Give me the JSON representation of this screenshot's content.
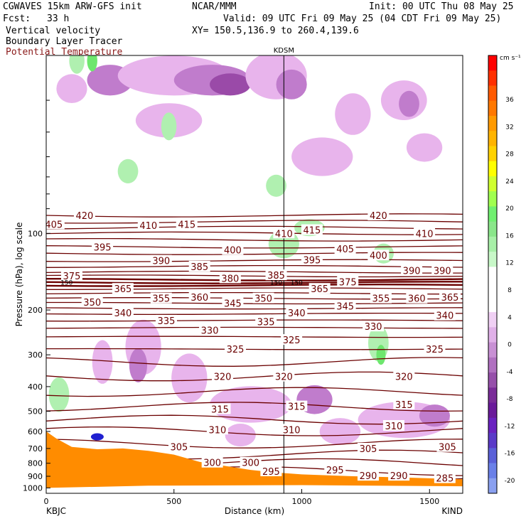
{
  "header": {
    "model": "CGWAVES 15km ARW-GFS init",
    "org": "NCAR/MMM",
    "init": "Init: 00 UTC Thu 08 May 25",
    "fcst_label": "Fcst:",
    "fcst_value": "33 h",
    "valid": "Valid: 09 UTC Fri 09 May 25 (04 CDT Fri 09 May 25)",
    "field1": "Vertical velocity",
    "field2": "Boundary Layer Tracer",
    "field3": "Potential Temperature",
    "xy": "XY= 150.5,136.9 to 260.4,139.6"
  },
  "colors": {
    "theta": "#6b0000",
    "terrain": "#ff8c00",
    "up_light": "#b0f0b0",
    "up_mid": "#6ee66e",
    "down_light": "#e8b4ec",
    "down_mid": "#c07ccc",
    "down_strong": "#9a4aa8"
  },
  "chart_data": {
    "type": "contour",
    "xlabel": "Distance (km)",
    "ylabel": "Pressure (hPa), log scale",
    "x_ticks": [
      "0",
      "500",
      "1000",
      "1500"
    ],
    "y_ticks": [
      "100",
      "200",
      "300",
      "400",
      "500",
      "600",
      "700",
      "800",
      "900",
      "1000"
    ],
    "xlim": [
      0,
      1630
    ],
    "ylim": [
      1050,
      20
    ],
    "station_left": "KBJC",
    "station_right": "KIND",
    "station_mid": "KDSM",
    "station_mid_km": 930,
    "colorbar_unit": "cm s⁻¹",
    "colorbar_labels": [
      "36",
      "32",
      "28",
      "24",
      "20",
      "16",
      "12",
      "8",
      "4",
      "0",
      "-4",
      "-8",
      "-12",
      "-16",
      "-20"
    ],
    "colorbar_colors": [
      "#ff0000",
      "#ff3000",
      "#ff5a00",
      "#ff7800",
      "#ff9a00",
      "#ffb400",
      "#ffd200",
      "#ffff00",
      "#d0ff30",
      "#a0ff50",
      "#70f070",
      "#8ae68a",
      "#a8f0a8",
      "#c8f8c8",
      "#ffffff",
      "#ffffff",
      "#ffffff",
      "#f0d0f4",
      "#e0b0e8",
      "#c890d4",
      "#b070c0",
      "#9650aa",
      "#7a2c98",
      "#6a1a9a",
      "#6a22c0",
      "#5a3ac8",
      "#5a60d8",
      "#6a80e8",
      "#8aa0f0"
    ],
    "theta_labels": [
      {
        "v": "420",
        "x": 150,
        "p": 85
      },
      {
        "v": "420",
        "x": 1300,
        "p": 85
      },
      {
        "v": "405",
        "x": 30,
        "p": 92
      },
      {
        "v": "410",
        "x": 400,
        "p": 93
      },
      {
        "v": "415",
        "x": 550,
        "p": 92
      },
      {
        "v": "410",
        "x": 930,
        "p": 100
      },
      {
        "v": "415",
        "x": 1040,
        "p": 97
      },
      {
        "v": "410",
        "x": 1480,
        "p": 100
      },
      {
        "v": "395",
        "x": 220,
        "p": 113
      },
      {
        "v": "400",
        "x": 730,
        "p": 116
      },
      {
        "v": "405",
        "x": 1170,
        "p": 115
      },
      {
        "v": "400",
        "x": 1300,
        "p": 122
      },
      {
        "v": "390",
        "x": 450,
        "p": 128
      },
      {
        "v": "395",
        "x": 1040,
        "p": 127
      },
      {
        "v": "385",
        "x": 600,
        "p": 135
      },
      {
        "v": "390",
        "x": 1430,
        "p": 140
      },
      {
        "v": "390",
        "x": 1550,
        "p": 140
      },
      {
        "v": "375",
        "x": 100,
        "p": 147
      },
      {
        "v": "380",
        "x": 720,
        "p": 150
      },
      {
        "v": "385",
        "x": 900,
        "p": 146
      },
      {
        "v": "375",
        "x": 1180,
        "p": 155
      },
      {
        "v": "365",
        "x": 300,
        "p": 165
      },
      {
        "v": "365",
        "x": 1070,
        "p": 165
      },
      {
        "v": "355",
        "x": 450,
        "p": 180
      },
      {
        "v": "360",
        "x": 600,
        "p": 178
      },
      {
        "v": "350",
        "x": 850,
        "p": 180
      },
      {
        "v": "355",
        "x": 1310,
        "p": 180
      },
      {
        "v": "360",
        "x": 1450,
        "p": 180
      },
      {
        "v": "365",
        "x": 1580,
        "p": 178
      },
      {
        "v": "350",
        "x": 180,
        "p": 186
      },
      {
        "v": "345",
        "x": 730,
        "p": 188
      },
      {
        "v": "345",
        "x": 1170,
        "p": 193
      },
      {
        "v": "340",
        "x": 300,
        "p": 205
      },
      {
        "v": "340",
        "x": 980,
        "p": 205
      },
      {
        "v": "340",
        "x": 1560,
        "p": 210
      },
      {
        "v": "335",
        "x": 470,
        "p": 220
      },
      {
        "v": "335",
        "x": 860,
        "p": 222
      },
      {
        "v": "330",
        "x": 640,
        "p": 240
      },
      {
        "v": "330",
        "x": 1280,
        "p": 232
      },
      {
        "v": "325",
        "x": 740,
        "p": 285
      },
      {
        "v": "325",
        "x": 960,
        "p": 262
      },
      {
        "v": "325",
        "x": 1520,
        "p": 285
      },
      {
        "v": "320",
        "x": 690,
        "p": 365
      },
      {
        "v": "320",
        "x": 930,
        "p": 365
      },
      {
        "v": "320",
        "x": 1400,
        "p": 365
      },
      {
        "v": "315",
        "x": 680,
        "p": 490
      },
      {
        "v": "315",
        "x": 980,
        "p": 478
      },
      {
        "v": "315",
        "x": 1400,
        "p": 470
      },
      {
        "v": "310",
        "x": 670,
        "p": 590
      },
      {
        "v": "310",
        "x": 960,
        "p": 590
      },
      {
        "v": "310",
        "x": 1360,
        "p": 570
      },
      {
        "v": "305",
        "x": 520,
        "p": 690
      },
      {
        "v": "305",
        "x": 1260,
        "p": 700
      },
      {
        "v": "305",
        "x": 1570,
        "p": 690
      },
      {
        "v": "300",
        "x": 650,
        "p": 795
      },
      {
        "v": "300",
        "x": 800,
        "p": 795
      },
      {
        "v": "295",
        "x": 880,
        "p": 860
      },
      {
        "v": "295",
        "x": 1130,
        "p": 850
      },
      {
        "v": "290",
        "x": 1260,
        "p": 895
      },
      {
        "v": "290",
        "x": 1380,
        "p": 895
      },
      {
        "v": "285",
        "x": 1560,
        "p": 915
      }
    ],
    "tropopause_labels": [
      {
        "v": "150",
        "x": 80,
        "p": 156
      },
      {
        "v": "150",
        "x": 900,
        "p": 156
      },
      {
        "v": "150",
        "x": 980,
        "p": 156
      }
    ]
  }
}
